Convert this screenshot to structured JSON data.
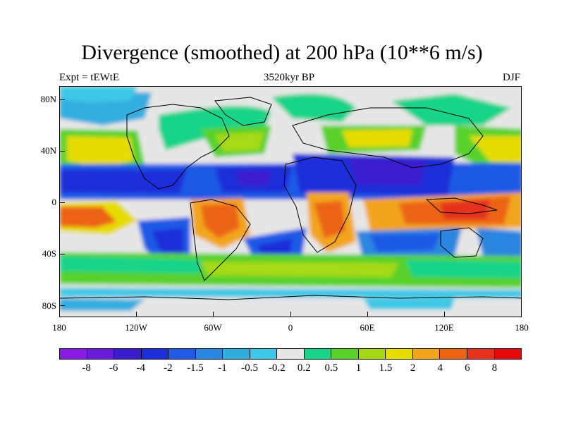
{
  "title": "Divergence (smoothed) at 200 hPa (10**6 m/s)",
  "left_label": "Expt = tEWtE",
  "center_label": "3520kyr BP",
  "right_label": "DJF",
  "y_ticks": [
    "80N",
    "40N",
    "0",
    "40S",
    "80S"
  ],
  "x_ticks": [
    "180",
    "120W",
    "60W",
    "0",
    "60E",
    "120E",
    "180"
  ],
  "colorbar": {
    "colors": [
      "#8a1ae6",
      "#6a1ad9",
      "#3a1ccf",
      "#1c2ed9",
      "#1f5ae6",
      "#2a86e0",
      "#31aee0",
      "#3cc8e6",
      "#e6e6e6",
      "#18d488",
      "#58d22a",
      "#a6d914",
      "#e6dc00",
      "#f2a51a",
      "#ec6412",
      "#e6321a",
      "#e60a0a"
    ],
    "labels": [
      "-8",
      "-6",
      "-4",
      "-2",
      "-1.5",
      "-1",
      "-0.5",
      "-0.2",
      "0.2",
      "0.5",
      "1",
      "1.5",
      "2",
      "4",
      "6",
      "8"
    ]
  }
}
